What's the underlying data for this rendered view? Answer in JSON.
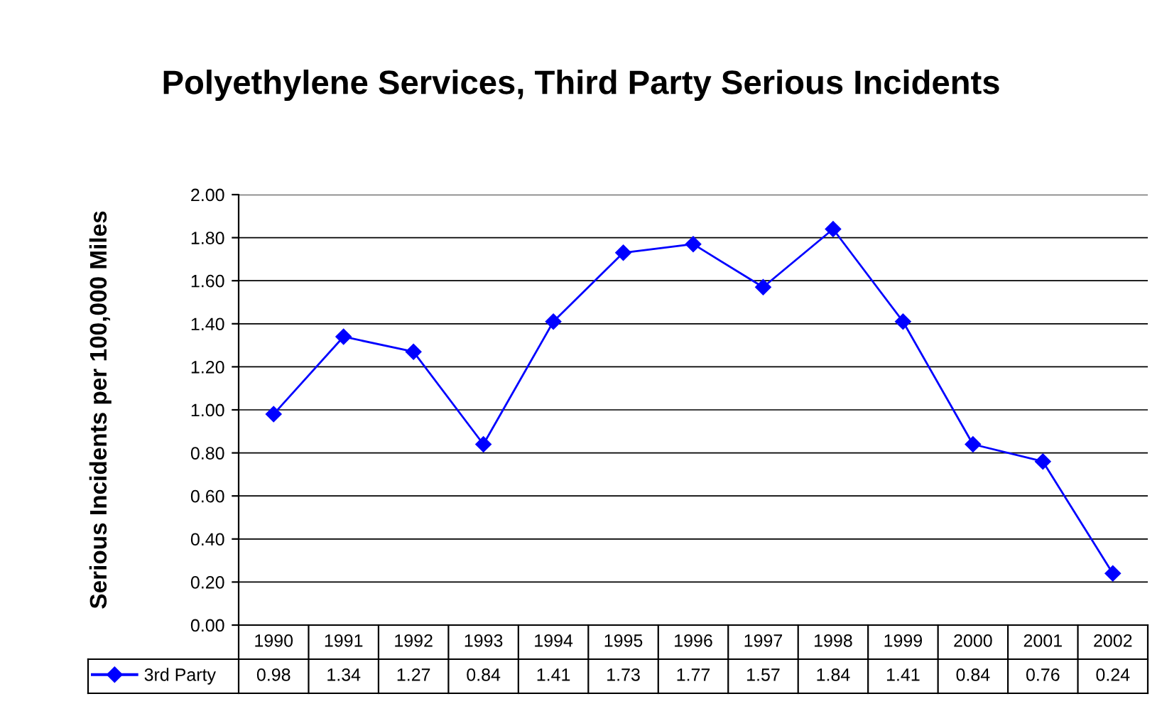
{
  "chart_data": {
    "type": "line",
    "title": "Polyethylene Services, Third Party Serious Incidents",
    "ylabel": "Serious Incidents per 100,000 Miles",
    "categories": [
      "1990",
      "1991",
      "1992",
      "1993",
      "1994",
      "1995",
      "1996",
      "1997",
      "1998",
      "1999",
      "2000",
      "2001",
      "2002"
    ],
    "series": [
      {
        "name": "3rd Party",
        "color": "#0000ff",
        "values": [
          0.98,
          1.34,
          1.27,
          0.84,
          1.41,
          1.73,
          1.77,
          1.57,
          1.84,
          1.41,
          0.84,
          0.76,
          0.24
        ]
      }
    ],
    "ylim": [
      0,
      2
    ],
    "yticks": [
      {
        "value": 0,
        "label": "0.00"
      },
      {
        "value": 0.2,
        "label": "0.20"
      },
      {
        "value": 0.4,
        "label": "0.40"
      },
      {
        "value": 0.6,
        "label": "0.60"
      },
      {
        "value": 0.8,
        "label": "0.80"
      },
      {
        "value": 1.0,
        "label": "1.00"
      },
      {
        "value": 1.2,
        "label": "1.20"
      },
      {
        "value": 1.4,
        "label": "1.40"
      },
      {
        "value": 1.6,
        "label": "1.60"
      },
      {
        "value": 1.8,
        "label": "1.80"
      },
      {
        "value": 2.0,
        "label": "2.00"
      }
    ],
    "grid": "y",
    "marker": "diamond",
    "line_style": "solid",
    "data_labels": true,
    "legend": "bottom"
  }
}
